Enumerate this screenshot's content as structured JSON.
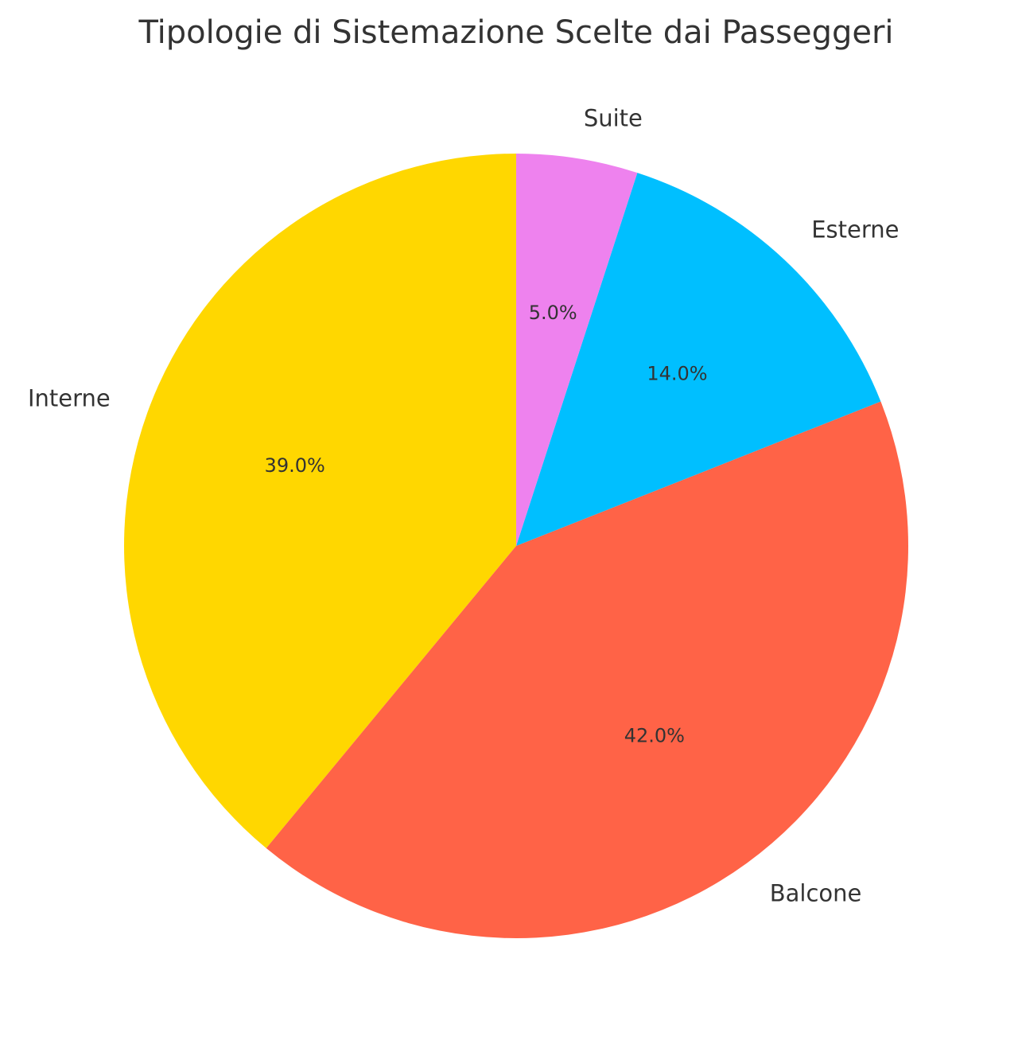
{
  "chart_data": {
    "type": "pie",
    "title": "Tipologie di Sistemazione Scelte dai Passeggeri",
    "start_angle_deg": 90,
    "direction": "counterclockwise",
    "slices": [
      {
        "label": "Interne",
        "value": 39.0,
        "pct_label": "39.0%",
        "color": "#FFD700"
      },
      {
        "label": "Balcone",
        "value": 42.0,
        "pct_label": "42.0%",
        "color": "#FF6347"
      },
      {
        "label": "Esterne",
        "value": 14.0,
        "pct_label": "14.0%",
        "color": "#00BFFF"
      },
      {
        "label": "Suite",
        "value": 5.0,
        "pct_label": "5.0%",
        "color": "#EE82EE"
      }
    ]
  }
}
